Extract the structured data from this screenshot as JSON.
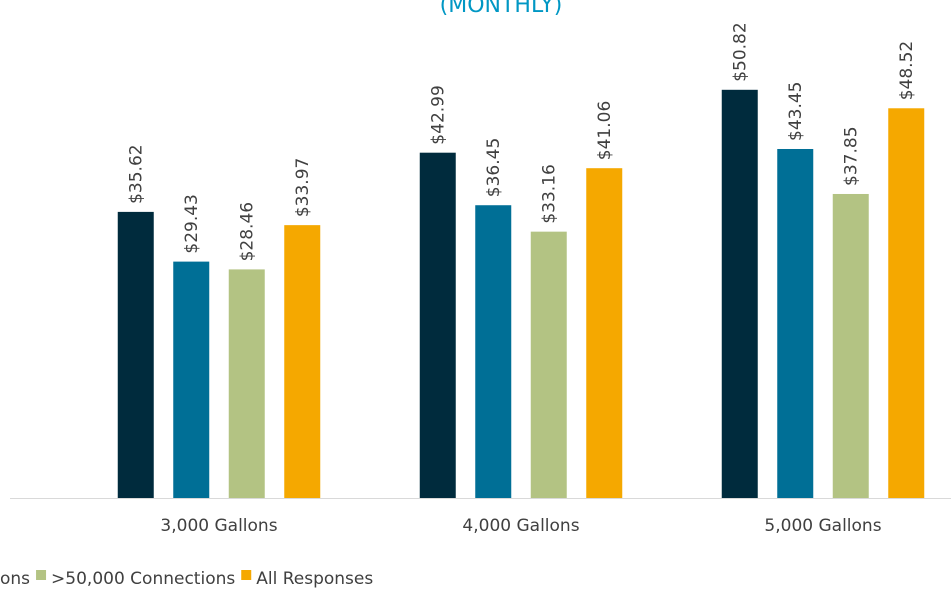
{
  "chart_data": {
    "type": "bar",
    "title": "(MONTHLY)",
    "categories": [
      "3,000 Gallons",
      "4,000 Gallons",
      "5,000 Gallons"
    ],
    "ylim": [
      0,
      62
    ],
    "series": [
      {
        "color": "#002b3d",
        "values": [
          35.62,
          42.99,
          50.82
        ],
        "value_labels": [
          "$35.62",
          "$42.99",
          "$50.82"
        ]
      },
      {
        "name": "ons",
        "color": "#006f96",
        "values": [
          29.43,
          36.45,
          43.45
        ],
        "value_labels": [
          "$29.43",
          "$36.45",
          "$43.45"
        ]
      },
      {
        "name": ">50,000 Connections",
        "color": "#b3c383",
        "values": [
          28.46,
          33.16,
          37.85
        ],
        "value_labels": [
          "$28.46",
          "$33.16",
          "$37.85"
        ]
      },
      {
        "name": "All Responses",
        "color": "#f5a800",
        "values": [
          33.97,
          41.06,
          48.52
        ],
        "value_labels": [
          "$33.97",
          "$41.06",
          "$48.52"
        ]
      }
    ]
  }
}
